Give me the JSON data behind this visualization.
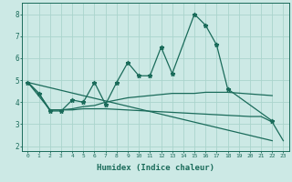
{
  "xlabel": "Humidex (Indice chaleur)",
  "bg_color": "#cce9e5",
  "grid_color": "#aad4cc",
  "line_color": "#1a6b5a",
  "xlim": [
    -0.5,
    23.5
  ],
  "ylim": [
    1.8,
    8.5
  ],
  "xticks": [
    0,
    1,
    2,
    3,
    4,
    5,
    6,
    7,
    8,
    9,
    10,
    11,
    12,
    13,
    14,
    15,
    16,
    17,
    18,
    19,
    20,
    21,
    22,
    23
  ],
  "yticks": [
    2,
    3,
    4,
    5,
    6,
    7,
    8
  ],
  "series": [
    {
      "x": [
        0,
        1,
        2,
        3,
        4,
        5,
        6,
        7,
        8,
        9,
        10,
        11,
        12,
        13,
        15,
        16,
        17,
        18,
        22
      ],
      "y": [
        4.9,
        4.4,
        3.6,
        3.6,
        4.1,
        4.0,
        4.9,
        3.9,
        4.9,
        5.8,
        5.2,
        5.2,
        6.5,
        5.3,
        8.0,
        7.5,
        6.6,
        4.6,
        3.15
      ]
    },
    {
      "x": [
        0,
        1,
        2,
        3,
        4,
        5,
        6,
        7,
        8,
        9,
        10,
        11,
        12,
        13,
        15,
        16,
        17,
        18,
        22
      ],
      "y": [
        4.9,
        4.4,
        3.65,
        3.65,
        3.7,
        3.8,
        3.85,
        4.0,
        4.1,
        4.2,
        4.25,
        4.3,
        4.35,
        4.4,
        4.4,
        4.45,
        4.45,
        4.45,
        4.3
      ]
    },
    {
      "x": [
        0,
        2,
        3,
        4,
        5,
        6,
        7,
        20,
        21,
        22,
        23
      ],
      "y": [
        4.9,
        3.65,
        3.65,
        3.65,
        3.7,
        3.7,
        3.7,
        3.35,
        3.35,
        3.1,
        2.25
      ]
    },
    {
      "x": [
        0,
        22
      ],
      "y": [
        4.9,
        2.25
      ]
    }
  ]
}
